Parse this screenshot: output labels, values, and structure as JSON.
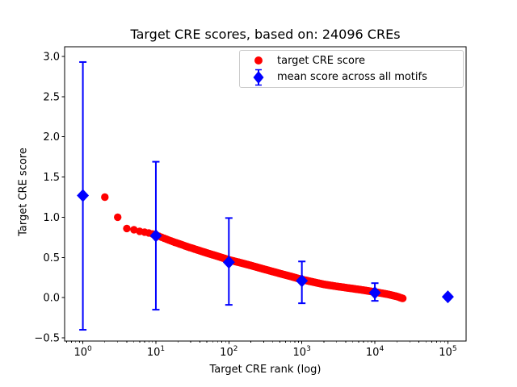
{
  "chart_data": {
    "type": "scatter",
    "title": "Target CRE scores, based on: 24096 CREs",
    "xlabel": "Target CRE rank (log)",
    "ylabel": "Target CRE score",
    "xscale": "log",
    "grid": false,
    "legend_position": "upper right",
    "xlim_log10": [
      -0.25,
      5.25
    ],
    "ylim": [
      -0.54,
      3.12
    ],
    "x_ticks": [
      {
        "value": 1,
        "label": "10",
        "exp": "0"
      },
      {
        "value": 10,
        "label": "10",
        "exp": "1"
      },
      {
        "value": 100,
        "label": "10",
        "exp": "2"
      },
      {
        "value": 1000,
        "label": "10",
        "exp": "3"
      },
      {
        "value": 10000,
        "label": "10",
        "exp": "4"
      },
      {
        "value": 100000,
        "label": "10",
        "exp": "5"
      }
    ],
    "y_ticks": [
      {
        "value": -0.5,
        "label": "−0.5"
      },
      {
        "value": 0.0,
        "label": "0.0"
      },
      {
        "value": 0.5,
        "label": "0.5"
      },
      {
        "value": 1.0,
        "label": "1.0"
      },
      {
        "value": 1.5,
        "label": "1.5"
      },
      {
        "value": 2.0,
        "label": "2.0"
      },
      {
        "value": 2.5,
        "label": "2.5"
      },
      {
        "value": 3.0,
        "label": "3.0"
      }
    ],
    "series": [
      {
        "name": "target CRE score",
        "color": "#ff0000",
        "marker": "circle",
        "rank_range": [
          2,
          24096
        ],
        "anchors": [
          [
            2,
            1.25
          ],
          [
            3,
            1.0
          ],
          [
            4,
            0.86
          ],
          [
            5,
            0.845
          ],
          [
            6,
            0.825
          ],
          [
            8,
            0.805
          ],
          [
            10,
            0.78
          ],
          [
            15,
            0.715
          ],
          [
            20,
            0.675
          ],
          [
            30,
            0.62
          ],
          [
            50,
            0.555
          ],
          [
            70,
            0.515
          ],
          [
            100,
            0.47
          ],
          [
            150,
            0.43
          ],
          [
            200,
            0.4
          ],
          [
            300,
            0.355
          ],
          [
            500,
            0.3
          ],
          [
            700,
            0.265
          ],
          [
            1000,
            0.225
          ],
          [
            1500,
            0.19
          ],
          [
            2000,
            0.165
          ],
          [
            3000,
            0.14
          ],
          [
            5000,
            0.112
          ],
          [
            7000,
            0.093
          ],
          [
            10000,
            0.07
          ],
          [
            15000,
            0.042
          ],
          [
            20000,
            0.015
          ],
          [
            24096,
            -0.01
          ]
        ]
      },
      {
        "name": "mean score across all motifs",
        "color": "#0000ff",
        "marker": "diamond",
        "x": [
          1,
          10,
          100,
          1000,
          10000,
          100000
        ],
        "y": [
          1.27,
          0.77,
          0.44,
          0.21,
          0.06,
          0.01
        ],
        "bar_top": [
          2.93,
          1.69,
          0.99,
          0.45,
          0.18,
          0.01
        ],
        "bar_bottom": [
          -0.4,
          -0.15,
          -0.09,
          -0.07,
          -0.04,
          0.01
        ]
      }
    ]
  },
  "colors": {
    "red": "#ff0000",
    "blue": "#0000ff",
    "axis": "#000000",
    "legend_border": "#cccccc",
    "background": "#ffffff"
  }
}
